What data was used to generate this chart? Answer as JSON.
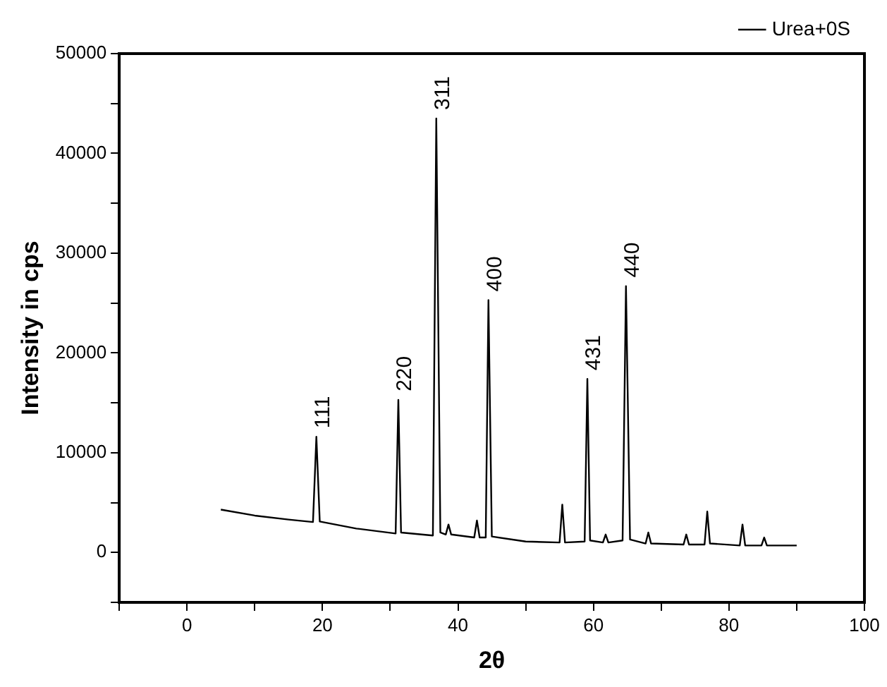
{
  "chart_data": {
    "type": "line",
    "xlabel": "2θ",
    "ylabel": "Intensity in cps",
    "xlim": [
      -10,
      100
    ],
    "xticks": [
      0,
      20,
      40,
      60,
      80,
      100,
      {
        "value": -10,
        "label": null
      },
      {
        "value": 10,
        "label": null
      },
      {
        "value": 30,
        "label": null
      },
      {
        "value": 50,
        "label": null
      },
      {
        "value": 70,
        "label": null
      },
      {
        "value": 90,
        "label": null
      }
    ],
    "ylim": [
      -5000,
      50000
    ],
    "yticks": [
      0,
      10000,
      20000,
      30000,
      40000,
      50000,
      {
        "value": -5000,
        "label": null
      },
      {
        "value": 5000,
        "label": null
      },
      {
        "value": 15000,
        "label": null
      },
      {
        "value": 25000,
        "label": null
      },
      {
        "value": 35000,
        "label": null
      },
      {
        "value": 45000,
        "label": null
      }
    ],
    "grid": false,
    "legend": "top right",
    "marker": "none",
    "line_style": "solid",
    "series": [
      {
        "name": "Urea+0S",
        "color": "#000000",
        "x": [
          5,
          10,
          15,
          18.6,
          19.1,
          19.6,
          25,
          30.8,
          31.2,
          31.6,
          36.3,
          36.8,
          37.4,
          38.2,
          38.6,
          39,
          42.4,
          42.8,
          43.2,
          44.1,
          44.5,
          45,
          50,
          55,
          55.4,
          55.8,
          58.7,
          59.1,
          59.5,
          61.4,
          61.8,
          62.2,
          64.3,
          64.8,
          65.4,
          67.7,
          68.1,
          68.5,
          73.3,
          73.7,
          74.1,
          76.4,
          76.8,
          77.2,
          81.6,
          82,
          82.4,
          84.8,
          85.2,
          85.6,
          90
        ],
        "values": [
          4300,
          3700,
          3300,
          3050,
          11600,
          3100,
          2400,
          1900,
          15300,
          2000,
          1700,
          43500,
          2000,
          1800,
          2800,
          1800,
          1500,
          3200,
          1500,
          1500,
          25300,
          1600,
          1100,
          1000,
          4800,
          1000,
          1100,
          17400,
          1200,
          1000,
          1800,
          1000,
          1200,
          26700,
          1300,
          900,
          2000,
          900,
          800,
          1800,
          800,
          800,
          4100,
          900,
          700,
          2800,
          700,
          700,
          1500,
          700,
          700
        ]
      }
    ],
    "annotations": [
      {
        "text": "111",
        "x": 19.1,
        "y": 11600
      },
      {
        "text": "220",
        "x": 31.2,
        "y": 15300
      },
      {
        "text": "311",
        "x": 36.8,
        "y": 43500
      },
      {
        "text": "400",
        "x": 44.5,
        "y": 25300
      },
      {
        "text": "431",
        "x": 59.1,
        "y": 17400
      },
      {
        "text": "440",
        "x": 64.8,
        "y": 26700
      }
    ]
  }
}
